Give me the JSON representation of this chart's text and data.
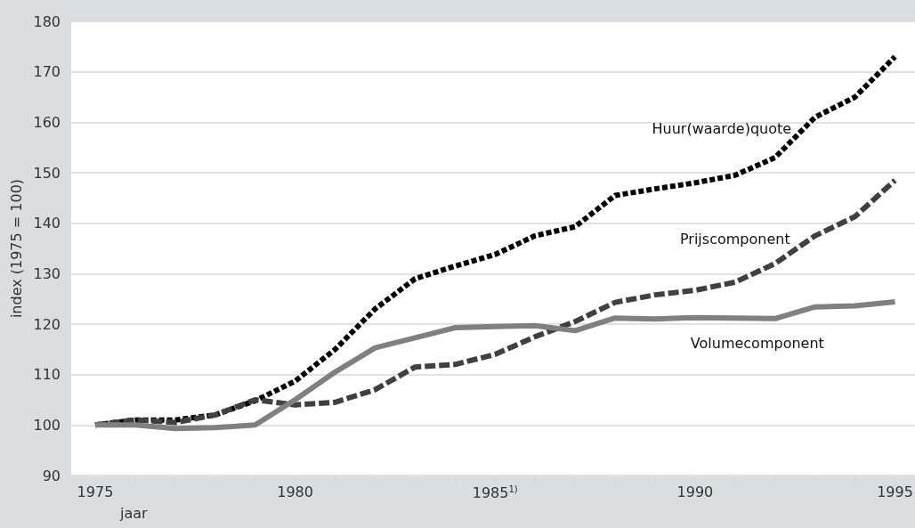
{
  "chart_data": {
    "type": "line",
    "xlabel": "jaar",
    "ylabel": "index (1975 = 100)",
    "x": [
      1975,
      1976,
      1977,
      1978,
      1979,
      1980,
      1981,
      1982,
      1983,
      1984,
      1985,
      1986,
      1987,
      1988,
      1989,
      1990,
      1991,
      1992,
      1993,
      1994,
      1995
    ],
    "series": [
      {
        "name": "Huur(waarde)quote",
        "color": "#000000",
        "line_style": "dotted",
        "values": [
          100,
          101,
          101,
          102,
          104.8,
          108.7,
          115,
          123,
          129,
          131.5,
          133.8,
          137.5,
          139.3,
          145.5,
          146.8,
          148,
          149.5,
          153,
          161,
          165,
          173
        ]
      },
      {
        "name": "Prijscomponent",
        "color": "#404040",
        "line_style": "dashed",
        "values": [
          100,
          101,
          100.5,
          102,
          105,
          104,
          104.5,
          107,
          111.5,
          112,
          114,
          117.5,
          120.5,
          124.3,
          125.8,
          126.7,
          128.3,
          132,
          137.5,
          141.3,
          148.5
        ]
      },
      {
        "name": "Volumecomponent",
        "color": "#808080",
        "line_style": "solid",
        "values": [
          100,
          100,
          99.3,
          99.5,
          100,
          105,
          110.5,
          115.3,
          117.3,
          119.3,
          119.5,
          119.7,
          118.7,
          121.2,
          121,
          121.3,
          121.2,
          121.1,
          123.4,
          123.6,
          124.4
        ]
      }
    ],
    "xlim": [
      1974.4,
      1995.5
    ],
    "xticks": [
      1975,
      {
        "value": 1976,
        "label": null
      },
      {
        "value": 1977,
        "label": null
      },
      {
        "value": 1978,
        "label": null
      },
      {
        "value": 1979,
        "label": null
      },
      1980,
      {
        "value": 1981,
        "label": null
      },
      {
        "value": 1982,
        "label": null
      },
      {
        "value": 1983,
        "label": null
      },
      {
        "value": 1984,
        "label": null
      },
      {
        "value": 1985,
        "label": "1985$^{1)}$"
      },
      {
        "value": 1986,
        "label": null
      },
      {
        "value": 1987,
        "label": null
      },
      {
        "value": 1988,
        "label": null
      },
      {
        "value": 1989,
        "label": null
      },
      1990,
      {
        "value": 1991,
        "label": null
      },
      {
        "value": 1992,
        "label": null
      },
      {
        "value": 1993,
        "label": null
      },
      {
        "value": 1994,
        "label": null
      },
      1995
    ],
    "ylim": [
      90,
      180
    ],
    "yticks": [
      90,
      100,
      110,
      120,
      130,
      140,
      150,
      160,
      170,
      180
    ],
    "grid": "y",
    "legend": false,
    "marker": "none"
  }
}
